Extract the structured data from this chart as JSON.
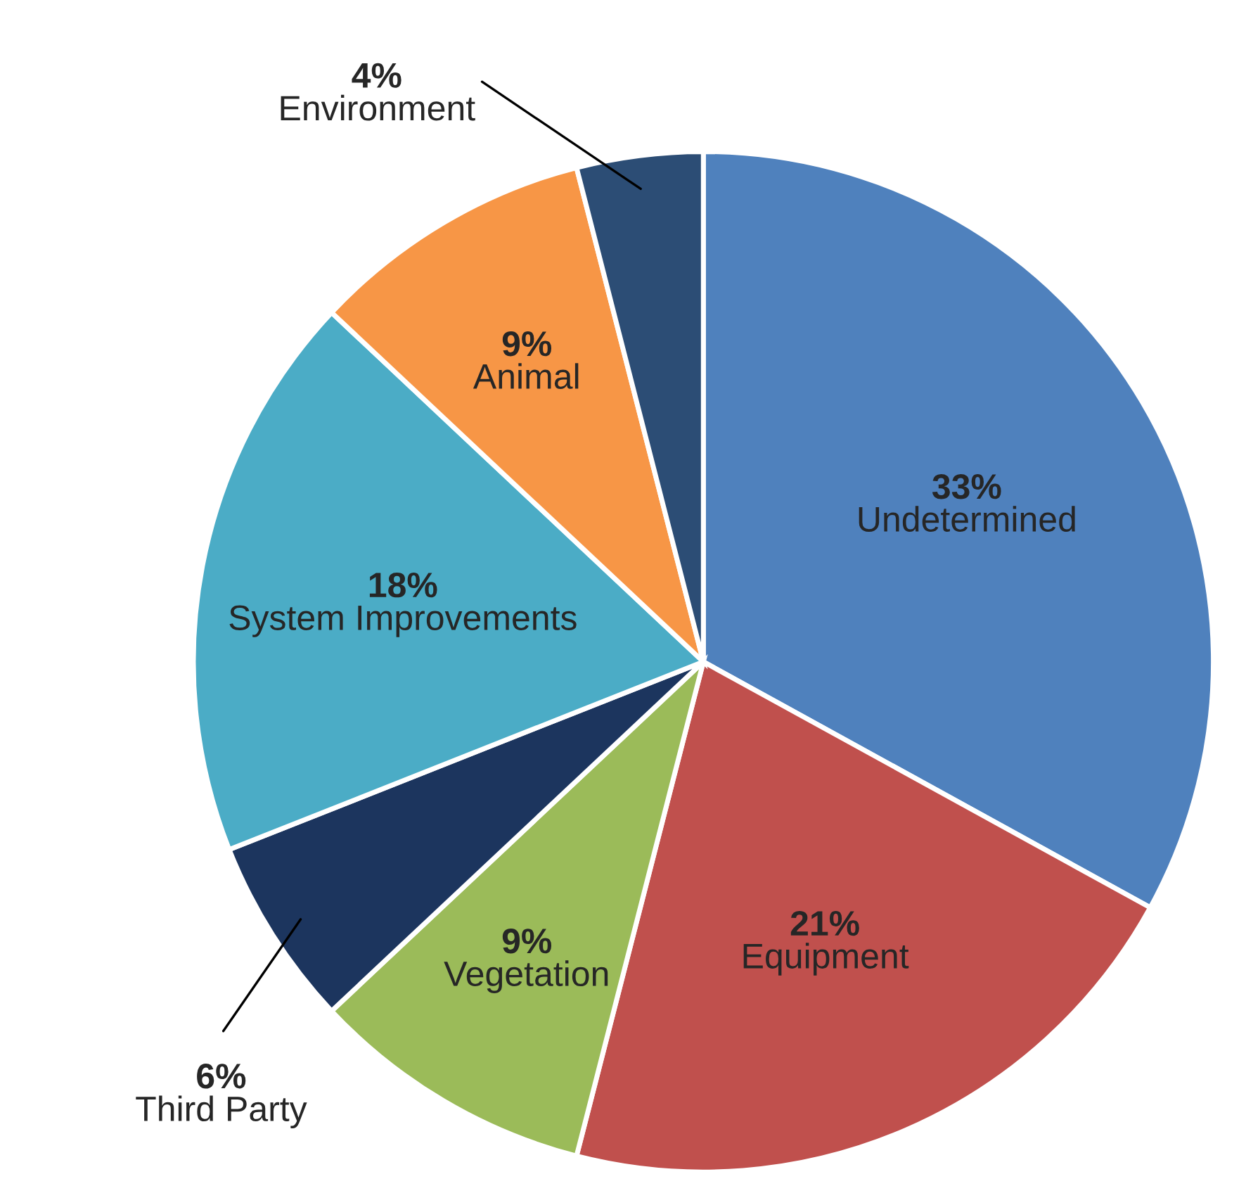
{
  "chart_data": {
    "type": "pie",
    "categories": [
      "Undetermined",
      "Equipment",
      "Vegetation",
      "Third Party",
      "System Improvements",
      "Animal",
      "Environment"
    ],
    "values": [
      33,
      21,
      9,
      6,
      18,
      9,
      4
    ],
    "value_labels": [
      "33%",
      "21%",
      "9%",
      "6%",
      "18%",
      "9%",
      "4%"
    ],
    "colors": [
      "#4f81bd",
      "#c0504d",
      "#9bbb59",
      "#1c355e",
      "#4bacc6",
      "#f79646",
      "#2c4d75"
    ],
    "legend": false
  }
}
